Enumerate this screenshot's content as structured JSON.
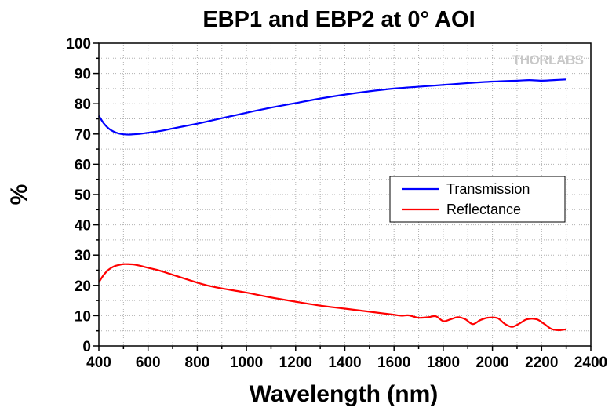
{
  "chart_data": {
    "type": "line",
    "title": "EBP1 and EBP2 at 0° AOI",
    "xlabel": "Wavelength (nm)",
    "ylabel": "%",
    "xlim": [
      400,
      2400
    ],
    "ylim": [
      0,
      100
    ],
    "xticks": [
      "400",
      "600",
      "800",
      "1000",
      "1200",
      "1400",
      "1600",
      "1800",
      "2000",
      "2200",
      "2400"
    ],
    "yticks": [
      "0",
      "10",
      "20",
      "30",
      "40",
      "50",
      "60",
      "70",
      "80",
      "90",
      "100"
    ],
    "grid": true,
    "legend_position": "center-right",
    "watermark": "THORLABS",
    "series": [
      {
        "name": "Transmission",
        "color": "#0000ff",
        "x": [
          400,
          420,
          440,
          460,
          480,
          500,
          520,
          540,
          560,
          580,
          600,
          650,
          700,
          750,
          800,
          850,
          900,
          950,
          1000,
          1100,
          1200,
          1300,
          1400,
          1500,
          1600,
          1700,
          1800,
          1900,
          2000,
          2100,
          2150,
          2200,
          2250,
          2300
        ],
        "y": [
          76,
          73.5,
          71.8,
          70.8,
          70.2,
          69.9,
          69.8,
          69.9,
          70.0,
          70.2,
          70.4,
          71.0,
          71.8,
          72.6,
          73.4,
          74.3,
          75.2,
          76.1,
          77.0,
          78.7,
          80.2,
          81.7,
          83.0,
          84.1,
          85.0,
          85.6,
          86.2,
          86.8,
          87.3,
          87.6,
          87.8,
          87.6,
          87.8,
          88.0
        ]
      },
      {
        "name": "Reflectance",
        "color": "#ff0000",
        "x": [
          400,
          420,
          440,
          460,
          480,
          500,
          520,
          540,
          560,
          580,
          600,
          650,
          700,
          750,
          800,
          850,
          900,
          950,
          1000,
          1100,
          1200,
          1300,
          1400,
          1500,
          1550,
          1600,
          1630,
          1660,
          1700,
          1740,
          1770,
          1800,
          1830,
          1860,
          1890,
          1920,
          1950,
          1980,
          2020,
          2050,
          2080,
          2110,
          2140,
          2180,
          2210,
          2240,
          2270,
          2300
        ],
        "y": [
          21,
          23.5,
          25.2,
          26.2,
          26.7,
          27.0,
          27.0,
          26.9,
          26.6,
          26.2,
          25.8,
          24.8,
          23.5,
          22.2,
          20.9,
          19.8,
          19.0,
          18.3,
          17.6,
          16.0,
          14.6,
          13.3,
          12.3,
          11.3,
          10.8,
          10.3,
          10.0,
          10.1,
          9.3,
          9.5,
          9.8,
          8.2,
          8.8,
          9.5,
          8.8,
          7.2,
          8.5,
          9.3,
          9.2,
          7.3,
          6.3,
          7.4,
          8.8,
          8.8,
          7.3,
          5.6,
          5.2,
          5.5
        ]
      }
    ]
  }
}
